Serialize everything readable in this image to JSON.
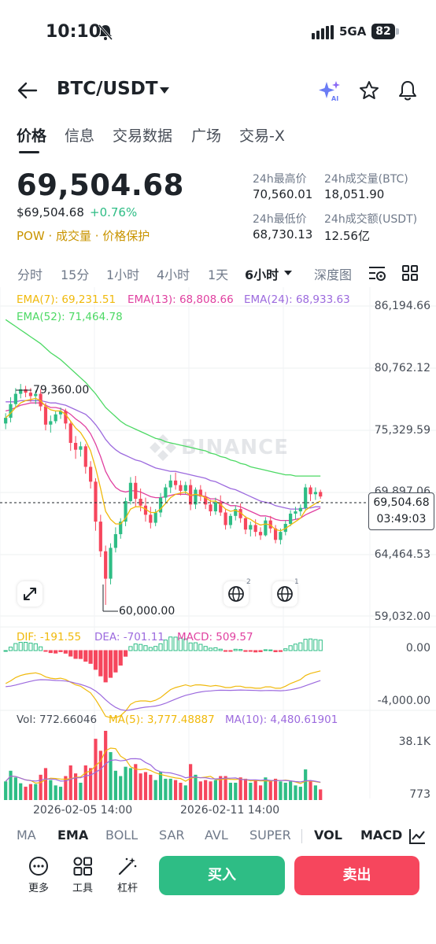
{
  "status_bar": {
    "time": "10:10",
    "network": "5GA",
    "battery": "82"
  },
  "header": {
    "pair": "BTC/USDT"
  },
  "tabs": [
    {
      "label": "价格",
      "active": true
    },
    {
      "label": "信息"
    },
    {
      "label": "交易数据"
    },
    {
      "label": "广场"
    },
    {
      "label": "交易-X"
    }
  ],
  "price": {
    "last": "69,504.68",
    "usd": "$69,504.68",
    "change": "+0.76%",
    "tags": "POW · 成交量 · 价格保护"
  },
  "stats": {
    "high_label": "24h最高价",
    "high": "70,560.01",
    "vol_btc_label": "24h成交量(BTC)",
    "vol_btc": "18,051.90",
    "low_label": "24h最低价",
    "low": "68,730.13",
    "vol_usdt_label": "24h成交额(USDT)",
    "vol_usdt": "12.56亿"
  },
  "intervals": [
    {
      "label": "分时"
    },
    {
      "label": "15分"
    },
    {
      "label": "1小时"
    },
    {
      "label": "4小时"
    },
    {
      "label": "1天"
    },
    {
      "label": "6小时",
      "active": true
    },
    {
      "label": "深度图"
    }
  ],
  "ema_legend": {
    "ema7": "EMA(7): 69,231.51",
    "ema13": "EMA(13): 68,808.66",
    "ema24": "EMA(24): 68,933.63",
    "ema52": "EMA(52): 71,464.78"
  },
  "price_axis": [
    "86,194.66",
    "80,762.12",
    "75,329.59",
    "69,897.06",
    "64,464.53",
    "59,032.00"
  ],
  "last_price_tag": {
    "price": "69,504.68",
    "countdown": "03:49:03"
  },
  "high_marker": "79,360.00",
  "low_marker": "60,000.00",
  "watermark": "BINANCE",
  "macd_legend": {
    "dif": "DIF: -191.55",
    "dea": "DEA: -701.11",
    "macd": "MACD: 509.57"
  },
  "macd_axis": [
    "0.00",
    "-4,000.00"
  ],
  "vol_legend": {
    "vol": "Vol: 772.66046",
    "ma5": "MA(5): 3,777.48887",
    "ma10": "MA(10): 4,480.61901"
  },
  "vol_axis": [
    "38.1K",
    "773"
  ],
  "dates": [
    "2026-02-05 14:00",
    "2026-02-11 14:00"
  ],
  "badges": [
    "2",
    "1"
  ],
  "indicators": [
    {
      "label": "MA"
    },
    {
      "label": "EMA",
      "active": true
    },
    {
      "label": "BOLL"
    },
    {
      "label": "SAR"
    },
    {
      "label": "AVL"
    },
    {
      "label": "SUPER"
    },
    {
      "label": "VOL",
      "active": true
    },
    {
      "label": "MACD",
      "active": true
    }
  ],
  "tools": [
    {
      "label": "更多"
    },
    {
      "label": "工具"
    },
    {
      "label": "杠杆"
    }
  ],
  "actions": {
    "buy": "买入",
    "sell": "卖出"
  },
  "colors": {
    "up": "#2ebd85",
    "down": "#f6465d",
    "ema7": "#f0b90b",
    "ema13": "#e040a0",
    "ema24": "#9c6ade",
    "ema52": "#4cd964",
    "accent": "#c99400"
  },
  "chart_data": {
    "type": "candlestick",
    "y_range": [
      59032.0,
      86194.66
    ],
    "candles": [
      {
        "o": 75900,
        "h": 76800,
        "l": 75400,
        "c": 76400
      },
      {
        "o": 76400,
        "h": 78200,
        "l": 76000,
        "c": 77600
      },
      {
        "o": 77600,
        "h": 79000,
        "l": 77300,
        "c": 78500
      },
      {
        "o": 78500,
        "h": 79360,
        "l": 78100,
        "c": 78900
      },
      {
        "o": 78900,
        "h": 79200,
        "l": 78200,
        "c": 78600
      },
      {
        "o": 78600,
        "h": 79000,
        "l": 77800,
        "c": 78300
      },
      {
        "o": 78300,
        "h": 78800,
        "l": 77600,
        "c": 78500
      },
      {
        "o": 78500,
        "h": 78900,
        "l": 77000,
        "c": 77400
      },
      {
        "o": 77400,
        "h": 77700,
        "l": 75300,
        "c": 75800
      },
      {
        "o": 75800,
        "h": 76600,
        "l": 75100,
        "c": 76100
      },
      {
        "o": 76100,
        "h": 77000,
        "l": 75900,
        "c": 76700
      },
      {
        "o": 76700,
        "h": 77300,
        "l": 76300,
        "c": 77000
      },
      {
        "o": 77000,
        "h": 77200,
        "l": 75400,
        "c": 75900
      },
      {
        "o": 75900,
        "h": 76100,
        "l": 73500,
        "c": 74200
      },
      {
        "o": 74200,
        "h": 74800,
        "l": 72800,
        "c": 73600
      },
      {
        "o": 73600,
        "h": 74300,
        "l": 73000,
        "c": 73900
      },
      {
        "o": 73900,
        "h": 74100,
        "l": 71500,
        "c": 72100
      },
      {
        "o": 72100,
        "h": 72600,
        "l": 70200,
        "c": 70800
      },
      {
        "o": 70800,
        "h": 71100,
        "l": 66500,
        "c": 67300
      },
      {
        "o": 67300,
        "h": 67900,
        "l": 64200,
        "c": 64700
      },
      {
        "o": 64700,
        "h": 65200,
        "l": 60000,
        "c": 62300
      },
      {
        "o": 62300,
        "h": 65400,
        "l": 61800,
        "c": 65000
      },
      {
        "o": 65000,
        "h": 66800,
        "l": 64600,
        "c": 66200
      },
      {
        "o": 66200,
        "h": 67600,
        "l": 65800,
        "c": 67300
      },
      {
        "o": 67300,
        "h": 69400,
        "l": 66900,
        "c": 69100
      },
      {
        "o": 69100,
        "h": 71200,
        "l": 68800,
        "c": 70700
      },
      {
        "o": 70700,
        "h": 71300,
        "l": 68600,
        "c": 69300
      },
      {
        "o": 69300,
        "h": 70200,
        "l": 68200,
        "c": 68700
      },
      {
        "o": 68700,
        "h": 69400,
        "l": 67300,
        "c": 67900
      },
      {
        "o": 67900,
        "h": 68600,
        "l": 66700,
        "c": 67200
      },
      {
        "o": 67200,
        "h": 68400,
        "l": 66900,
        "c": 68100
      },
      {
        "o": 68100,
        "h": 69800,
        "l": 67700,
        "c": 69400
      },
      {
        "o": 69400,
        "h": 70600,
        "l": 69000,
        "c": 70300
      },
      {
        "o": 70300,
        "h": 71400,
        "l": 69800,
        "c": 70900
      },
      {
        "o": 70900,
        "h": 71600,
        "l": 70100,
        "c": 70500
      },
      {
        "o": 70500,
        "h": 70900,
        "l": 69600,
        "c": 70000
      },
      {
        "o": 70000,
        "h": 70800,
        "l": 69700,
        "c": 70500
      },
      {
        "o": 70500,
        "h": 71000,
        "l": 68300,
        "c": 68800
      },
      {
        "o": 68800,
        "h": 70300,
        "l": 68400,
        "c": 70100
      },
      {
        "o": 70100,
        "h": 70500,
        "l": 69100,
        "c": 69500
      },
      {
        "o": 69500,
        "h": 69900,
        "l": 68400,
        "c": 68800
      },
      {
        "o": 68800,
        "h": 69200,
        "l": 67800,
        "c": 68200
      },
      {
        "o": 68200,
        "h": 69400,
        "l": 67900,
        "c": 69000
      },
      {
        "o": 69000,
        "h": 69600,
        "l": 67800,
        "c": 68100
      },
      {
        "o": 68100,
        "h": 68400,
        "l": 66600,
        "c": 67000
      },
      {
        "o": 67000,
        "h": 68000,
        "l": 66700,
        "c": 67800
      },
      {
        "o": 67800,
        "h": 68700,
        "l": 67400,
        "c": 68400
      },
      {
        "o": 68400,
        "h": 68900,
        "l": 67200,
        "c": 67600
      },
      {
        "o": 67600,
        "h": 67800,
        "l": 66200,
        "c": 66600
      },
      {
        "o": 66600,
        "h": 67300,
        "l": 66000,
        "c": 67000
      },
      {
        "o": 67000,
        "h": 67500,
        "l": 66000,
        "c": 66400
      },
      {
        "o": 66400,
        "h": 66800,
        "l": 65700,
        "c": 66100
      },
      {
        "o": 66100,
        "h": 67700,
        "l": 66000,
        "c": 67400
      },
      {
        "o": 67400,
        "h": 67800,
        "l": 66300,
        "c": 66700
      },
      {
        "o": 66700,
        "h": 67000,
        "l": 65400,
        "c": 65700
      },
      {
        "o": 65700,
        "h": 66700,
        "l": 65300,
        "c": 66400
      },
      {
        "o": 66400,
        "h": 67400,
        "l": 66100,
        "c": 67100
      },
      {
        "o": 67100,
        "h": 68300,
        "l": 66900,
        "c": 68000
      },
      {
        "o": 68000,
        "h": 68600,
        "l": 67500,
        "c": 68200
      },
      {
        "o": 68200,
        "h": 68800,
        "l": 67800,
        "c": 68500
      },
      {
        "o": 68500,
        "h": 70600,
        "l": 68300,
        "c": 70300
      },
      {
        "o": 70300,
        "h": 70500,
        "l": 69100,
        "c": 69700
      },
      {
        "o": 69700,
        "h": 70300,
        "l": 69200,
        "c": 69900
      },
      {
        "o": 69900,
        "h": 70100,
        "l": 69300,
        "c": 69500
      }
    ],
    "ema7": [
      76400,
      76800,
      77300,
      77700,
      77900,
      78000,
      78100,
      77900,
      77400,
      77100,
      77000,
      77000,
      76700,
      76100,
      75500,
      75100,
      74400,
      73500,
      72000,
      70200,
      68200,
      67500,
      67100,
      67100,
      67600,
      68400,
      68600,
      68600,
      68400,
      68100,
      68100,
      68400,
      68900,
      69400,
      69700,
      69800,
      69900,
      69600,
      69700,
      69600,
      69400,
      69100,
      69100,
      68800,
      68400,
      68200,
      68300,
      68100,
      67700,
      67500,
      67200,
      67000,
      67100,
      67000,
      66600,
      66500,
      66700,
      67000,
      67300,
      67600,
      68300,
      68600,
      68900,
      69100
    ],
    "ema13": [
      77000,
      77100,
      77300,
      77500,
      77600,
      77700,
      77700,
      77700,
      77500,
      77300,
      77300,
      77200,
      77000,
      76700,
      76300,
      76000,
      75600,
      75000,
      74100,
      73000,
      71700,
      70900,
      70300,
      70000,
      69900,
      70000,
      70000,
      69900,
      69700,
      69500,
      69400,
      69400,
      69500,
      69600,
      69700,
      69700,
      69700,
      69600,
      69600,
      69600,
      69500,
      69300,
      69300,
      69100,
      68900,
      68700,
      68700,
      68600,
      68400,
      68200,
      68000,
      67800,
      67800,
      67700,
      67500,
      67400,
      67400,
      67400,
      67500,
      67600,
      67900,
      68100,
      68300,
      68500
    ],
    "ema24": [
      77800,
      77800,
      77800,
      77900,
      77900,
      77900,
      77900,
      77900,
      77800,
      77700,
      77700,
      77600,
      77500,
      77300,
      77100,
      76900,
      76700,
      76300,
      75800,
      75200,
      74500,
      74000,
      73600,
      73300,
      73100,
      72900,
      72700,
      72600,
      72400,
      72200,
      72000,
      71900,
      71800,
      71700,
      71700,
      71600,
      71500,
      71400,
      71300,
      71200,
      71100,
      70900,
      70800,
      70600,
      70400,
      70200,
      70100,
      69900,
      69700,
      69500,
      69300,
      69100,
      69000,
      68900,
      68700,
      68600,
      68500,
      68400,
      68400,
      68400,
      68500,
      68500,
      68600,
      68600
    ],
    "ema52": [
      85000,
      84700,
      84400,
      84100,
      83800,
      83500,
      83200,
      82900,
      82500,
      82100,
      81800,
      81500,
      81100,
      80700,
      80300,
      79900,
      79500,
      79000,
      78500,
      77900,
      77300,
      76900,
      76500,
      76100,
      75800,
      75600,
      75400,
      75200,
      75000,
      74800,
      74600,
      74500,
      74300,
      74200,
      74100,
      74000,
      73900,
      73800,
      73700,
      73600,
      73500,
      73300,
      73200,
      73000,
      72900,
      72700,
      72600,
      72400,
      72300,
      72100,
      72000,
      71900,
      71800,
      71700,
      71600,
      71500,
      71400,
      71400,
      71300,
      71300,
      71300,
      71300,
      71300,
      71300
    ]
  }
}
